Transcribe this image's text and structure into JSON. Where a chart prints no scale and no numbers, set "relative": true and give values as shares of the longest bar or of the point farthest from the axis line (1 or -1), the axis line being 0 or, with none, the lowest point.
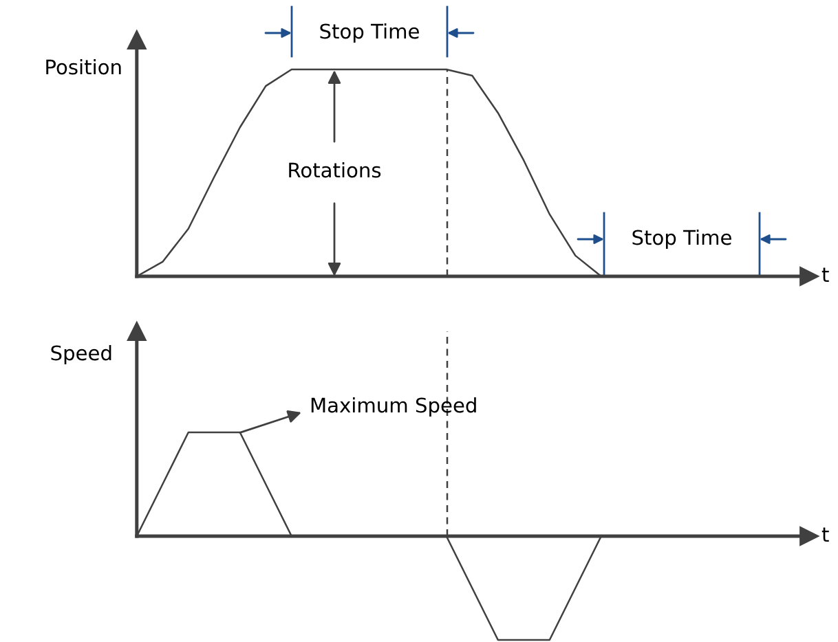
{
  "chart_data": [
    {
      "type": "line",
      "relative": true,
      "ylabel": "Position",
      "xlabel": "t",
      "categories": [
        null,
        null,
        null,
        null,
        null,
        null,
        null,
        null,
        null,
        null,
        null,
        null,
        null,
        null,
        null,
        null,
        null,
        null,
        null,
        null,
        null,
        null,
        null,
        null,
        null
      ],
      "series": [
        {
          "color": "#404040",
          "values": [
            0,
            0.07,
            0.23,
            0.48,
            0.72,
            0.92,
            1,
            1,
            1,
            1,
            1,
            1,
            1,
            0.97,
            0.79,
            0.56,
            0.3,
            0.1,
            0,
            0,
            0,
            0,
            0,
            0,
            0
          ]
        }
      ],
      "annotations": [
        "Stop Time",
        "Rotations",
        "Stop Time"
      ]
    },
    {
      "type": "line",
      "relative": true,
      "ylabel": "Speed",
      "xlabel": "t",
      "categories": [
        null,
        null,
        null,
        null,
        null,
        null,
        null,
        null,
        null,
        null,
        null,
        null,
        null,
        null,
        null,
        null,
        null,
        null,
        null,
        null,
        null,
        null,
        null,
        null,
        null
      ],
      "series": [
        {
          "color": "#404040",
          "values": [
            0,
            0.5,
            1,
            1,
            1,
            0.5,
            0,
            0,
            0,
            0,
            0,
            0,
            0,
            -0.5,
            -1,
            -1,
            -1,
            -0.5,
            0,
            0,
            0,
            0,
            0,
            0,
            0
          ]
        }
      ],
      "annotations": [
        "Maximum Speed"
      ]
    }
  ]
}
